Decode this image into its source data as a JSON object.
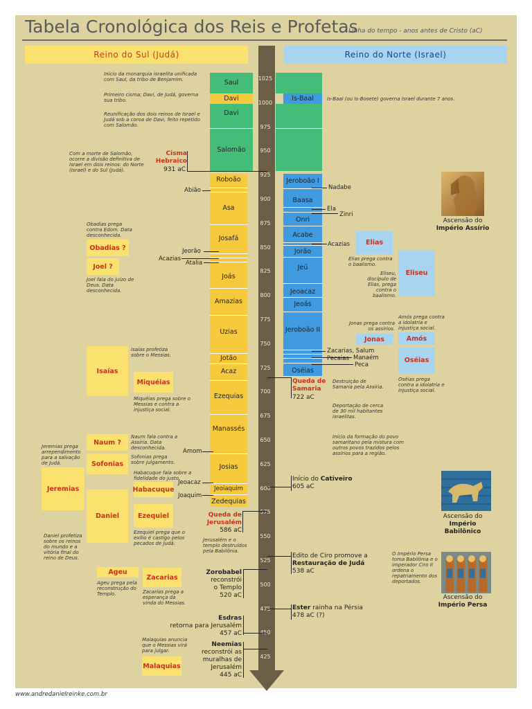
{
  "header": {
    "title": "Tabela Cronológica dos Reis e Profetas",
    "subtitle": "Linha do tempo - anos antes de Cristo (aC)",
    "south_label": "Reino do Sul (Judá)",
    "north_label": "Reino do Norte (Israel)"
  },
  "ticks": [
    "1025",
    "1000",
    "975",
    "950",
    "925",
    "900",
    "875",
    "850",
    "825",
    "800",
    "775",
    "750",
    "725",
    "700",
    "675",
    "650",
    "625",
    "600",
    "575",
    "550",
    "525",
    "500",
    "475",
    "450",
    "425"
  ],
  "united_kings": [
    "Saul",
    "Davi",
    "Davi",
    "Salomão"
  ],
  "isbaal": "Is-Baal",
  "south_kings": [
    "Roboão",
    "Asa",
    "Josafá",
    "Joás",
    "Amazias",
    "Uzias",
    "Jotão",
    "Acaz",
    "Ezequias",
    "Manassés",
    "Josias",
    "Jeoiaquim",
    "Zedequias"
  ],
  "south_minor": [
    "Abião",
    "Jeorão",
    "Acazias",
    "Atalia",
    "Amom",
    "Jeoacaz",
    "Joaquim"
  ],
  "north_kings": [
    "Jeroboão I",
    "Baasa",
    "Onri",
    "Acabe",
    "Jorão",
    "Jeú",
    "Jeoacaz",
    "Jeoás",
    "Jeroboão II",
    "Oséias"
  ],
  "north_minor": [
    "Nadabe",
    "Ela",
    "Zinri",
    "Acazias",
    "Zacarias, Salum",
    "Manaém",
    "Pecaias",
    "Peca"
  ],
  "notes": {
    "saul": "Início da monarquia israelita unificada com Saul, da tribo de Benjamim.",
    "davi": "Primeiro cisma; Davi, de Judá, governa sua tribo.",
    "reunif": "Reunificação dos dois reinos de Israel e Judá sob a coroa de Davi, feito repetido com Salomão.",
    "isbaal": "Is-Baal (ou Is-Bosete) governa Israel durante 7 anos.",
    "cisma": "Com a morte de Salomão, ocorre a divisão definitiva de Israel em dois reinos: do Norte (Israel) e do Sul (Judá).",
    "obadias": "Obadias prega contra Edom. Data desconhecida.",
    "joel": "Joel fala do juízo de Deus. Data desconhecida.",
    "isaias": "Isaías profetiza sobre o Messias.",
    "miqueias": "Miquéias prega sobre o Messias e contra a injustiça social.",
    "naum": "Naum fala contra a Assíria. Data desconhecida.",
    "sofonias": "Sofonias prega sobre julgamento.",
    "habacuque": "Habacuque fala sobre a fidelidade do justo.",
    "jeremias": "Jeremias prega arrependimento para a salvação de Judá.",
    "daniel": "Daniel profetiza sobre os reinos do mundo e a vitória final do reino de Deus.",
    "ezequiel": "Ezequiel prega que o exílio é castigo pelos pecados de Judá.",
    "ageu": "Ageu prega pela reconstrução do Templo.",
    "zacarias": "Zacarias prega a esperança da vinda do Messias.",
    "malaquias": "Malaquias anuncia que o Messias virá para julgar.",
    "elias": "Elias prega contra o baalismo.",
    "eliseu": "Eliseu, discípulo de Elias, prega contra o baalismo.",
    "jonas": "Jonas prega contra os assírios.",
    "amos": "Amós prega contra a idolatria e injustiça social.",
    "oseias": "Oséias prega contra a idolatria e injustiça social.",
    "samaria_destr": "Destruição de Samaria pela Assíria.",
    "samaria_deport": "Deportação de cerca de 30 mil habitantes israelitas.",
    "samaritano": "Início da formação do povo samaritano pela mistura com outros povos trazidos pelos assírios para a região.",
    "jerusalem_destr": "Jerusalém e o templo destruídos pela Babilônia.",
    "persa": "O Império Persa toma Babilônia e o imperador Ciro II ordena o repatriamento dos deportados."
  },
  "prophets_south": [
    "Obadias ?",
    "Joel ?",
    "Isaías",
    "Miquéias",
    "Naum ?",
    "Sofonias",
    "Jeremias",
    "Habacuque",
    "Daniel",
    "Ezequiel",
    "Ageu",
    "Zacarias",
    "Malaquias"
  ],
  "prophets_north": [
    "Elias",
    "Eliseu",
    "Jonas",
    "Amós",
    "Oséias"
  ],
  "events": {
    "cisma_a": "Cisma",
    "cisma_b": "Hebraico",
    "cisma_date": "931 aC",
    "samaria_a": "Queda de",
    "samaria_b": "Samaria",
    "samaria_date": "722 aC",
    "cativeiro_a": "Início do",
    "cativeiro_b": "Cativeiro",
    "cativeiro_date": "605 aC",
    "jerusalem_a": "Queda de",
    "jerusalem_b": "Jerusalém",
    "jerusalem_date": "586 aC",
    "ciro_a": "Edito de Ciro promove a",
    "ciro_b": "Restauração de Judá",
    "ciro_date": "538 aC",
    "zorobabel_a": "Zorobabel",
    "zorobabel_b": "reconstrói",
    "zorobabel_c": "o Templo",
    "zorobabel_date": "520 aC",
    "ester_a": "Ester",
    "ester_b": "rainha na Pérsia",
    "ester_date": "478 aC (?)",
    "esdras_a": "Esdras",
    "esdras_b": "retorna para Jerusalém",
    "esdras_date": "457 aC",
    "neemias_a": "Neemias",
    "neemias_b": "reconstrói as",
    "neemias_c": "muralhas de",
    "neemias_d": "Jerusalém",
    "neemias_date": "445 aC"
  },
  "empires": {
    "assirio_a": "Ascensão do",
    "assirio_b": "Império Assírio",
    "babil_a": "Ascensão do",
    "babil_b": "Império",
    "babil_c": "Babilônico",
    "persa_a": "Ascensão do",
    "persa_b": "Império Persa"
  },
  "footer": "www.andredanielreinke.com.br",
  "colors": {
    "south": "#f7c93c",
    "united": "#43bd78",
    "north": "#3f9ae0",
    "axis": "#6b5e47",
    "red": "#c8321d"
  }
}
